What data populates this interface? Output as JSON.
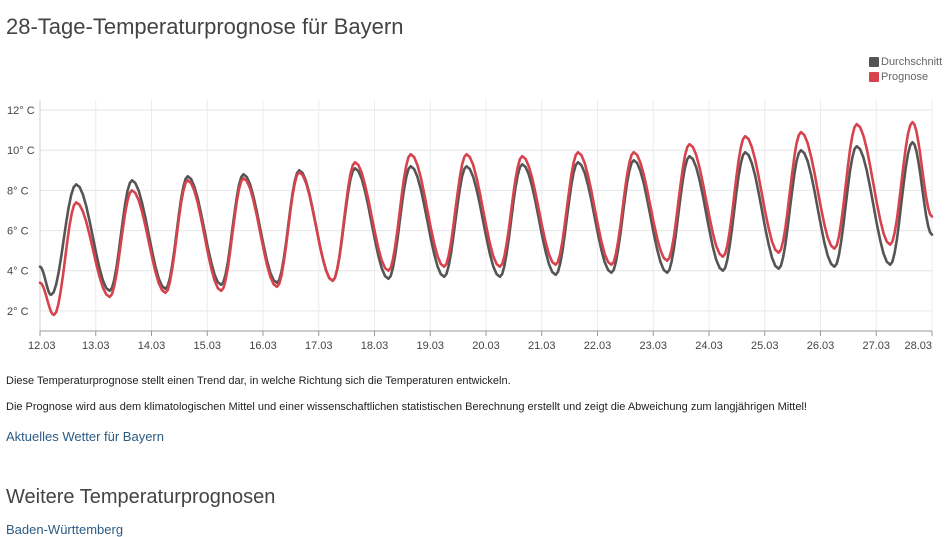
{
  "page": {
    "title": "28-Tage-Temperaturprognose für Bayern",
    "description_1": "Diese Temperaturprognose stellt einen Trend dar, in welche Richtung sich die Temperaturen entwickeln.",
    "description_2": "Die Prognose wird aus dem klimatologischen Mittel und einer wissenschaftlichen statistischen Berechnung erstellt und zeigt die Abweichung zum langjährigen Mittel!",
    "current_weather_link": "Aktuelles Wetter für Bayern",
    "section_title": "Weitere Temperaturprognosen",
    "more_links": [
      "Baden-Württemberg"
    ]
  },
  "chart_data": {
    "type": "line",
    "title": "28-Tage-Temperaturprognose für Bayern",
    "x_tick_labels": [
      "12.03",
      "13.03",
      "14.03",
      "15.03",
      "16.03",
      "17.03",
      "18.03",
      "19.03",
      "20.03",
      "21.03",
      "22.03",
      "23.03",
      "24.03",
      "25.03",
      "26.03",
      "27.03",
      "28.03"
    ],
    "y_tick_labels": [
      "2° C",
      "4° C",
      "6° C",
      "8° C",
      "10° C",
      "12° C"
    ],
    "y_ticks": [
      2,
      4,
      6,
      8,
      10,
      12
    ],
    "ylim": [
      1,
      12.5
    ],
    "xlim": [
      0,
      16
    ],
    "legend_position": "top-right",
    "grid": true,
    "series": [
      {
        "name": "Durchschnitt",
        "color": "#555555",
        "start": [
          0,
          4.2
        ],
        "minima": [
          [
            0.2,
            2.8
          ],
          [
            1.25,
            3.0
          ],
          [
            2.25,
            3.1
          ],
          [
            3.25,
            3.3
          ],
          [
            4.25,
            3.4
          ],
          [
            5.25,
            3.5
          ],
          [
            6.25,
            3.6
          ],
          [
            7.25,
            3.7
          ],
          [
            8.25,
            3.7
          ],
          [
            9.25,
            3.8
          ],
          [
            10.25,
            3.9
          ],
          [
            11.25,
            3.9
          ],
          [
            12.25,
            4.0
          ],
          [
            13.25,
            4.1
          ],
          [
            14.25,
            4.2
          ],
          [
            15.25,
            4.3
          ]
        ],
        "maxima": [
          [
            0.65,
            8.3
          ],
          [
            1.65,
            8.5
          ],
          [
            2.65,
            8.7
          ],
          [
            3.65,
            8.8
          ],
          [
            4.65,
            9.0
          ],
          [
            5.65,
            9.1
          ],
          [
            6.65,
            9.2
          ],
          [
            7.65,
            9.2
          ],
          [
            8.65,
            9.3
          ],
          [
            9.65,
            9.4
          ],
          [
            10.65,
            9.5
          ],
          [
            11.65,
            9.7
          ],
          [
            12.65,
            9.9
          ],
          [
            13.65,
            10.0
          ],
          [
            14.65,
            10.2
          ],
          [
            15.65,
            10.4
          ]
        ],
        "end": [
          16,
          5.8
        ]
      },
      {
        "name": "Prognose",
        "color": "#d6434d",
        "start": [
          0,
          3.4
        ],
        "minima": [
          [
            0.25,
            1.8
          ],
          [
            1.25,
            2.7
          ],
          [
            2.25,
            2.9
          ],
          [
            3.25,
            3.0
          ],
          [
            4.25,
            3.2
          ],
          [
            5.25,
            3.5
          ],
          [
            6.25,
            4.0
          ],
          [
            7.25,
            4.2
          ],
          [
            8.25,
            4.2
          ],
          [
            9.25,
            4.3
          ],
          [
            10.25,
            4.3
          ],
          [
            11.25,
            4.5
          ],
          [
            12.25,
            4.7
          ],
          [
            13.25,
            4.9
          ],
          [
            14.25,
            5.1
          ],
          [
            15.25,
            5.3
          ]
        ],
        "maxima": [
          [
            0.65,
            7.4
          ],
          [
            1.65,
            8.0
          ],
          [
            2.65,
            8.5
          ],
          [
            3.65,
            8.6
          ],
          [
            4.65,
            8.9
          ],
          [
            5.65,
            9.4
          ],
          [
            6.65,
            9.8
          ],
          [
            7.65,
            9.8
          ],
          [
            8.65,
            9.7
          ],
          [
            9.65,
            9.9
          ],
          [
            10.65,
            9.9
          ],
          [
            11.65,
            10.3
          ],
          [
            12.65,
            10.7
          ],
          [
            13.65,
            10.9
          ],
          [
            14.65,
            11.3
          ],
          [
            15.65,
            11.4
          ]
        ],
        "end": [
          16,
          6.7
        ]
      }
    ]
  }
}
